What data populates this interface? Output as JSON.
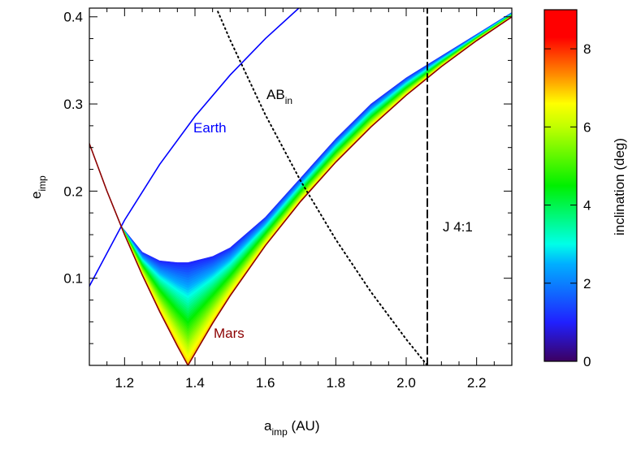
{
  "chart_data": {
    "type": "line",
    "xlabel": "a",
    "xlabel_sub": "imp",
    "xlabel_unit": " (AU)",
    "ylabel": "e",
    "ylabel_sub": "imp",
    "xlim": [
      1.1,
      2.3
    ],
    "ylim": [
      0,
      0.41
    ],
    "xticks": [
      1.2,
      1.4,
      1.6,
      1.8,
      {
        "value": 2.0,
        "label": "2.0"
      },
      2.2
    ],
    "yticks": [
      0.1,
      0.2,
      0.3,
      0.4
    ],
    "minor_per_major": 4,
    "series": [
      {
        "name": "Earth",
        "color": "#0000ff",
        "dash": "solid",
        "x": [
          1.1,
          1.2,
          1.3,
          1.4,
          1.5,
          1.6,
          1.695
        ],
        "values": [
          0.0909,
          0.1667,
          0.2308,
          0.2857,
          0.3333,
          0.375,
          0.41
        ]
      },
      {
        "name": "Mars",
        "color": "#8b0000",
        "dash": "solid",
        "x": [
          1.1,
          1.15,
          1.2,
          1.25,
          1.3,
          1.35,
          1.38,
          1.45,
          1.5,
          1.6,
          1.7,
          1.8,
          1.9,
          2.0,
          2.1,
          2.2,
          2.3
        ],
        "values": [
          0.2545,
          0.2,
          0.15,
          0.104,
          0.0615,
          0.0222,
          0,
          0.0483,
          0.08,
          0.1375,
          0.1882,
          0.2333,
          0.2737,
          0.31,
          0.3429,
          0.3727,
          0.4
        ]
      },
      {
        "name": "AB",
        "name_sub": "in",
        "color": "#000000",
        "dash": "dotted",
        "x": [
          1.465,
          1.5,
          1.6,
          1.7,
          1.8,
          1.9,
          2.0,
          2.06
        ],
        "values": [
          0.406,
          0.3733,
          0.2875,
          0.2118,
          0.1444,
          0.0842,
          0.03,
          0
        ]
      },
      {
        "name": "J 4:1",
        "color": "#000000",
        "dash": "dashed",
        "x": [
          2.06,
          2.06
        ],
        "values": [
          0,
          0.41
        ]
      }
    ],
    "region": {
      "x": [
        1.19,
        1.25,
        1.3,
        1.35,
        1.38,
        1.45,
        1.5,
        1.6,
        1.7,
        1.8,
        1.9,
        2.0,
        2.1,
        2.2,
        2.3
      ],
      "upper": [
        0.16,
        0.13,
        0.12,
        0.118,
        0.118,
        0.125,
        0.135,
        0.17,
        0.215,
        0.26,
        0.3,
        0.33,
        0.355,
        0.38,
        0.405
      ],
      "lower": [
        0.16,
        0.104,
        0.0615,
        0.0222,
        0,
        0.0483,
        0.08,
        0.1375,
        0.1882,
        0.2333,
        0.2737,
        0.31,
        0.3429,
        0.3727,
        0.4
      ],
      "inclination_top": 1,
      "inclination_bottom": 7
    },
    "colorbar": {
      "label": "inclination (deg)",
      "lim": [
        0,
        9
      ],
      "ticks": [
        0,
        2,
        4,
        6,
        8
      ],
      "colormap": [
        [
          0,
          "#3c0060"
        ],
        [
          1,
          "#2020ff"
        ],
        [
          2.5,
          "#00b0ff"
        ],
        [
          3,
          "#00ffe8"
        ],
        [
          4.5,
          "#00f000"
        ],
        [
          6,
          "#c0ff00"
        ],
        [
          6.6,
          "#ffff00"
        ],
        [
          7.3,
          "#ff9000"
        ],
        [
          8.3,
          "#ff0000"
        ],
        [
          9,
          "#ff0000"
        ]
      ]
    }
  }
}
